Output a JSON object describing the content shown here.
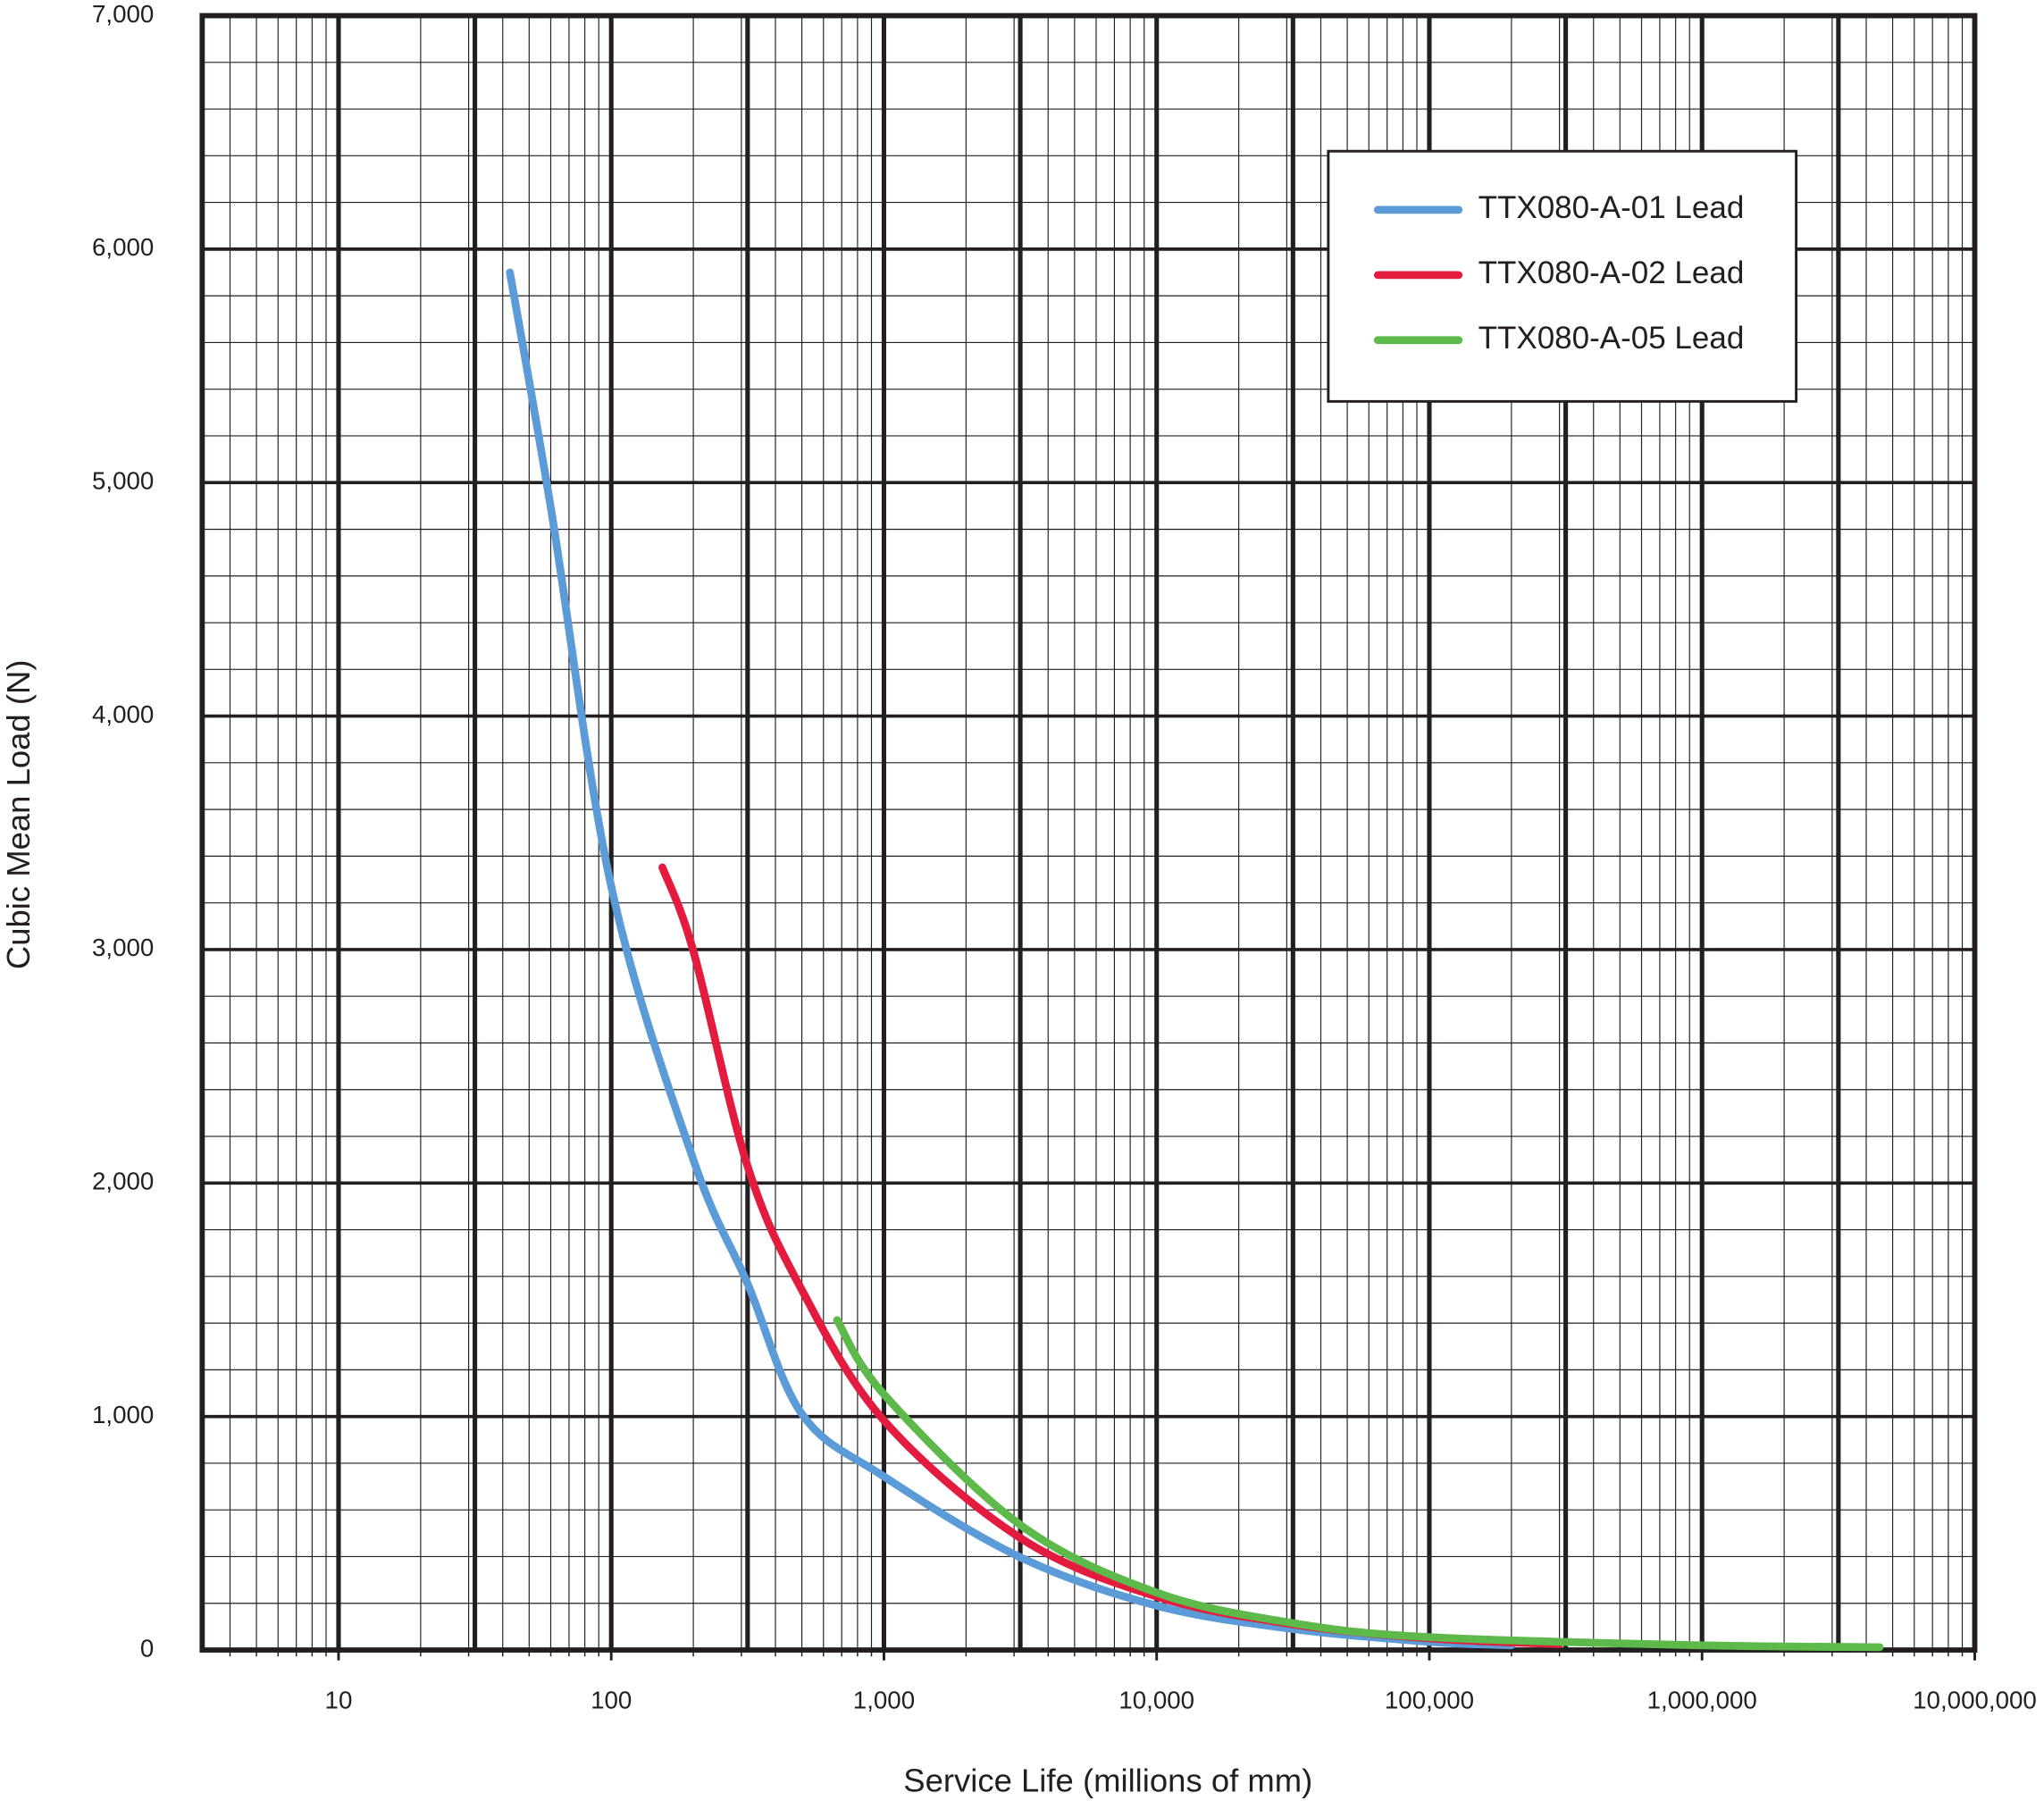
{
  "chart_data": {
    "type": "line",
    "x_label": "Service Life (millions of mm)",
    "y_label": "Cubic Mean Load (N)",
    "x_scale": "log",
    "xlim": [
      3.1623,
      10000000
    ],
    "xticks": [
      10,
      100,
      {
        "value": 1000,
        "label": "1,000"
      },
      {
        "value": 10000,
        "label": "10,000"
      },
      {
        "value": 100000,
        "label": "100,000"
      },
      {
        "value": 1000000,
        "label": "1,000,000"
      },
      {
        "value": 10000000,
        "label": "10,000,000"
      }
    ],
    "ylim": [
      0,
      7000
    ],
    "yticks": [
      0,
      {
        "value": 1000,
        "label": "1,000"
      },
      {
        "value": 2000,
        "label": "2,000"
      },
      {
        "value": 3000,
        "label": "3,000"
      },
      {
        "value": 4000,
        "label": "4,000"
      },
      {
        "value": 5000,
        "label": "5,000"
      },
      {
        "value": 6000,
        "label": "6,000"
      },
      {
        "value": 7000,
        "label": "7,000"
      }
    ],
    "grid": true,
    "legend": "upper right",
    "series": [
      {
        "name": "TTX080-A-01 Lead",
        "color": "#5b9bd8",
        "x": [
          42.5,
          60,
          100,
          200,
          316,
          500,
          1000,
          3162,
          10000,
          31623,
          100000,
          200000
        ],
        "values": [
          5900,
          4894,
          3270,
          2100,
          1570,
          1011,
          743,
          397,
          190,
          90,
          35,
          20
        ]
      },
      {
        "name": "TTX080-A-02 Lead",
        "color": "#e31b3f",
        "x": [
          154,
          200,
          316,
          500,
          1000,
          3162,
          10000,
          31623,
          100000,
          300000
        ],
        "values": [
          3352,
          2994,
          2073,
          1542,
          983,
          480,
          229,
          110,
          50,
          25
        ]
      },
      {
        "name": "TTX080-A-05 Lead",
        "color": "#5db94a",
        "x": [
          673,
          1000,
          3162,
          10000,
          31623,
          100000,
          1000000,
          4480000
        ],
        "values": [
          1413,
          1095,
          536,
          246,
          115,
          55,
          20,
          12
        ]
      }
    ]
  }
}
